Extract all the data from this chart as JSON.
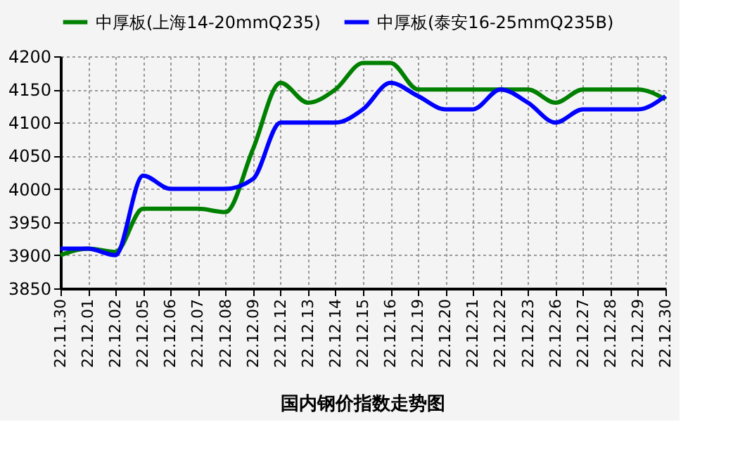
{
  "chart_data": {
    "type": "line",
    "title": "国内钢价指数走势图",
    "categories": [
      "22.11.30",
      "22.12.01",
      "22.12.02",
      "22.12.05",
      "22.12.06",
      "22.12.07",
      "22.12.08",
      "22.12.09",
      "22.12.12",
      "22.12.13",
      "22.12.14",
      "22.12.15",
      "22.12.16",
      "22.12.19",
      "22.12.20",
      "22.12.21",
      "22.12.22",
      "22.12.23",
      "22.12.26",
      "22.12.27",
      "22.12.28",
      "22.12.29",
      "22.12.30"
    ],
    "series": [
      {
        "name": "中厚板(上海14-20mmQ235)",
        "color": "#008000",
        "values": [
          3900,
          3910,
          3905,
          3970,
          3970,
          3970,
          3965,
          4060,
          4160,
          4130,
          4150,
          4190,
          4190,
          4150,
          4150,
          4150,
          4150,
          4150,
          4130,
          4150,
          4150,
          4150,
          4135
        ]
      },
      {
        "name": "中厚板(泰安16-25mmQ235B)",
        "color": "#0000ff",
        "values": [
          3910,
          3910,
          3900,
          4020,
          4000,
          4000,
          4000,
          4015,
          4100,
          4100,
          4100,
          4120,
          4160,
          4140,
          4120,
          4120,
          4150,
          4130,
          4100,
          4120,
          4120,
          4120,
          4140
        ]
      }
    ],
    "ylim": [
      3850,
      4200
    ],
    "yticks": [
      3850,
      3900,
      3950,
      4000,
      4050,
      4100,
      4150,
      4200
    ],
    "grid": true,
    "legend": "top",
    "marker": "none",
    "line_style": "solid"
  }
}
